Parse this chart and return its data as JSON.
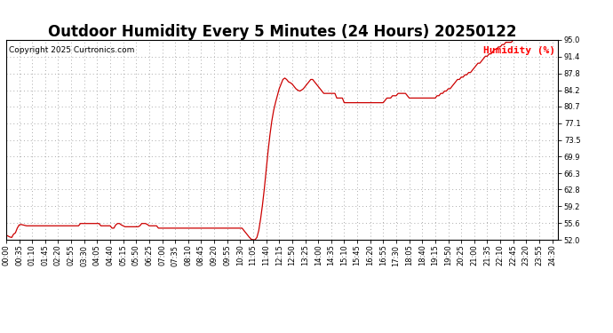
{
  "title": "Outdoor Humidity Every 5 Minutes (24 Hours) 20250122",
  "copyright_text": "Copyright 2025 Curtronics.com",
  "legend_text": "Humidity (%)",
  "legend_color": "#ff0000",
  "line_color": "#cc0000",
  "background_color": "#ffffff",
  "ylim": [
    52.0,
    95.0
  ],
  "yticks": [
    52.0,
    55.6,
    59.2,
    62.8,
    66.3,
    69.9,
    73.5,
    77.1,
    80.7,
    84.2,
    87.8,
    91.4,
    95.0
  ],
  "grid_color": "#aaaaaa",
  "title_fontsize": 12,
  "tick_fontsize": 6.0,
  "humidity_data": [
    53.0,
    52.8,
    52.6,
    52.5,
    53.2,
    53.5,
    54.5,
    55.2,
    55.3,
    55.2,
    55.1,
    55.0,
    55.0,
    55.0,
    55.0,
    55.0,
    55.0,
    55.0,
    55.0,
    55.0,
    55.0,
    55.0,
    55.0,
    55.0,
    55.0,
    55.0,
    55.0,
    55.0,
    55.0,
    55.0,
    55.0,
    55.0,
    55.0,
    55.0,
    55.0,
    55.0,
    55.0,
    55.0,
    55.0,
    55.0,
    55.5,
    55.5,
    55.5,
    55.5,
    55.5,
    55.5,
    55.5,
    55.5,
    55.5,
    55.5,
    55.5,
    55.0,
    55.0,
    55.0,
    55.0,
    55.0,
    55.0,
    54.5,
    54.5,
    55.2,
    55.5,
    55.5,
    55.2,
    55.0,
    54.8,
    54.8,
    54.8,
    54.8,
    54.8,
    54.8,
    54.8,
    54.8,
    55.0,
    55.5,
    55.5,
    55.5,
    55.3,
    55.0,
    55.0,
    55.0,
    55.0,
    55.0,
    54.5,
    54.5,
    54.5,
    54.5,
    54.5,
    54.5,
    54.5,
    54.5,
    54.5,
    54.5,
    54.5,
    54.5,
    54.5,
    54.5,
    54.5,
    54.5,
    54.5,
    54.5,
    54.5,
    54.5,
    54.5,
    54.5,
    54.5,
    54.5,
    54.5,
    54.5,
    54.5,
    54.5,
    54.5,
    54.5,
    54.5,
    54.5,
    54.5,
    54.5,
    54.5,
    54.5,
    54.5,
    54.5,
    54.5,
    54.5,
    54.5,
    54.5,
    54.5,
    54.5,
    54.5,
    54.5,
    54.0,
    53.5,
    53.0,
    52.5,
    52.1,
    52.0,
    52.0,
    52.5,
    54.0,
    56.5,
    59.5,
    63.0,
    67.0,
    71.0,
    74.5,
    77.5,
    79.8,
    81.5,
    83.0,
    84.5,
    85.5,
    86.5,
    86.8,
    86.5,
    86.0,
    85.8,
    85.5,
    85.0,
    84.5,
    84.2,
    84.0,
    84.2,
    84.5,
    85.0,
    85.5,
    86.0,
    86.5,
    86.5,
    86.0,
    85.5,
    85.0,
    84.5,
    84.0,
    83.5,
    83.5,
    83.5,
    83.5,
    83.5,
    83.5,
    83.5,
    82.5,
    82.5,
    82.5,
    82.5,
    81.5,
    81.5,
    81.5,
    81.5,
    81.5,
    81.5,
    81.5,
    81.5,
    81.5,
    81.5,
    81.5,
    81.5,
    81.5,
    81.5,
    81.5,
    81.5,
    81.5,
    81.5,
    81.5,
    81.5,
    81.5,
    81.5,
    82.0,
    82.5,
    82.5,
    82.5,
    83.0,
    83.0,
    83.0,
    83.5,
    83.5,
    83.5,
    83.5,
    83.5,
    83.0,
    82.5,
    82.5,
    82.5,
    82.5,
    82.5,
    82.5,
    82.5,
    82.5,
    82.5,
    82.5,
    82.5,
    82.5,
    82.5,
    82.5,
    82.5,
    83.0,
    83.0,
    83.5,
    83.5,
    84.0,
    84.0,
    84.5,
    84.5,
    85.0,
    85.5,
    86.0,
    86.5,
    86.5,
    87.0,
    87.0,
    87.5,
    87.5,
    88.0,
    88.0,
    88.5,
    89.0,
    89.5,
    90.0,
    90.0,
    90.5,
    91.0,
    91.5,
    91.5,
    92.0,
    92.0,
    92.5,
    93.0,
    93.0,
    93.5,
    93.5,
    94.0,
    94.0,
    94.5,
    94.5,
    94.5,
    94.5,
    95.0,
    95.0,
    95.0,
    95.0,
    95.0,
    95.0,
    95.0,
    95.0,
    95.0,
    95.0,
    95.0,
    95.0,
    95.0,
    95.0,
    95.0,
    95.0,
    95.0,
    95.0,
    95.0,
    95.0,
    95.0,
    95.0,
    95.0,
    95.0,
    95.0
  ]
}
